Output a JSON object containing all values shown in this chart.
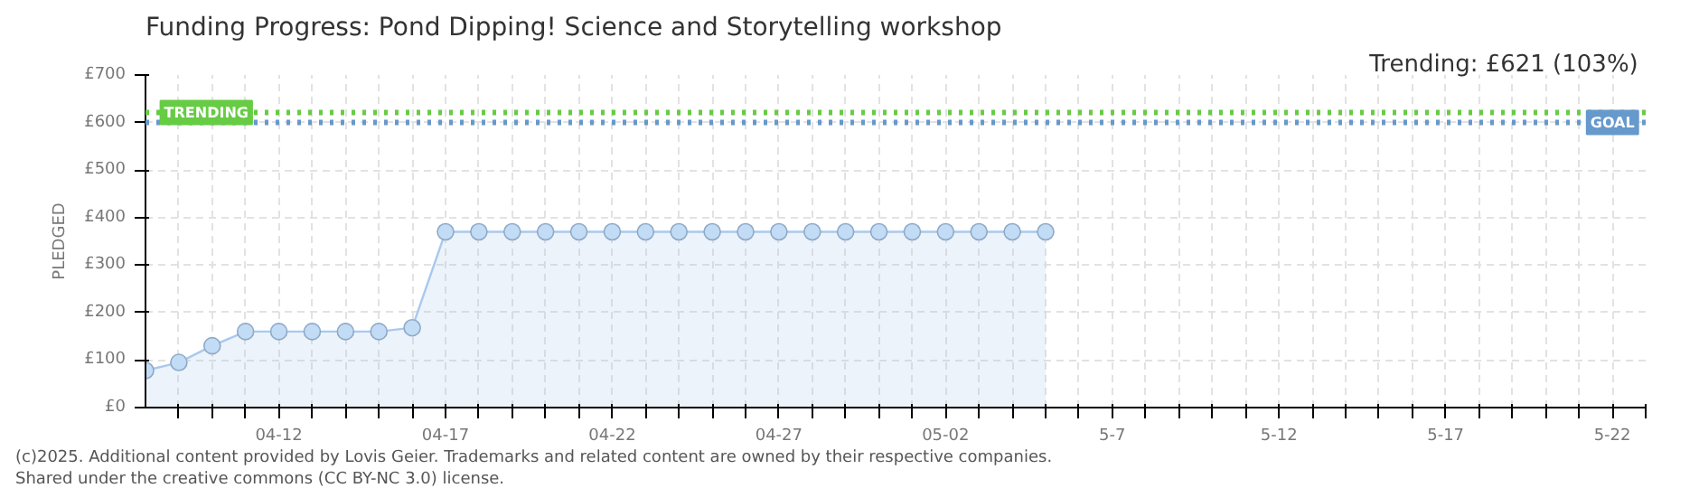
{
  "chart_data": {
    "type": "area",
    "title": "Funding Progress: Pond Dipping! Science and Storytelling workshop",
    "subtitle": "Trending:  £621 (103%)",
    "ylabel": "PLEDGED",
    "x": [
      "2025-04-08",
      "2025-04-09",
      "2025-04-10",
      "2025-04-11",
      "2025-04-12",
      "2025-04-13",
      "2025-04-14",
      "2025-04-15",
      "2025-04-16",
      "2025-04-17",
      "2025-04-18",
      "2025-04-19",
      "2025-04-20",
      "2025-04-21",
      "2025-04-22",
      "2025-04-23",
      "2025-04-24",
      "2025-04-25",
      "2025-04-26",
      "2025-04-27",
      "2025-04-28",
      "2025-04-29",
      "2025-04-30",
      "2025-05-01",
      "2025-05-02",
      "2025-05-03",
      "2025-05-04",
      "2025-05-05"
    ],
    "series": [
      {
        "color": "#a9c9ee",
        "values": [
          78,
          95,
          130,
          160,
          160,
          160,
          160,
          160,
          168,
          370,
          370,
          370,
          370,
          370,
          370,
          370,
          370,
          370,
          370,
          370,
          370,
          370,
          370,
          370,
          370,
          370,
          370,
          370
        ]
      }
    ],
    "marker": "circle",
    "xlim": [
      "2025-04-08",
      "2025-05-23"
    ],
    "xticks": [
      {
        "value": "2025-04-09",
        "label": null
      },
      {
        "value": "2025-04-10",
        "label": null
      },
      {
        "value": "2025-04-11",
        "label": null
      },
      {
        "value": "2025-04-12",
        "label": "04-12"
      },
      {
        "value": "2025-04-13",
        "label": null
      },
      {
        "value": "2025-04-14",
        "label": null
      },
      {
        "value": "2025-04-15",
        "label": null
      },
      {
        "value": "2025-04-16",
        "label": null
      },
      {
        "value": "2025-04-17",
        "label": "04-17"
      },
      {
        "value": "2025-04-18",
        "label": null
      },
      {
        "value": "2025-04-19",
        "label": null
      },
      {
        "value": "2025-04-20",
        "label": null
      },
      {
        "value": "2025-04-21",
        "label": null
      },
      {
        "value": "2025-04-22",
        "label": "04-22"
      },
      {
        "value": "2025-04-23",
        "label": null
      },
      {
        "value": "2025-04-24",
        "label": null
      },
      {
        "value": "2025-04-25",
        "label": null
      },
      {
        "value": "2025-04-26",
        "label": null
      },
      {
        "value": "2025-04-27",
        "label": "04-27"
      },
      {
        "value": "2025-04-28",
        "label": null
      },
      {
        "value": "2025-04-29",
        "label": null
      },
      {
        "value": "2025-04-30",
        "label": null
      },
      {
        "value": "2025-05-01",
        "label": null
      },
      {
        "value": "2025-05-02",
        "label": "05-02"
      },
      {
        "value": "2025-05-03",
        "label": null
      },
      {
        "value": "2025-05-04",
        "label": null
      },
      {
        "value": "2025-05-05",
        "label": null
      },
      {
        "value": "2025-05-06",
        "label": null
      },
      {
        "value": "2025-05-07",
        "label": "5-7"
      },
      {
        "value": "2025-05-08",
        "label": null
      },
      {
        "value": "2025-05-09",
        "label": null
      },
      {
        "value": "2025-05-10",
        "label": null
      },
      {
        "value": "2025-05-11",
        "label": null
      },
      {
        "value": "2025-05-12",
        "label": "5-12"
      },
      {
        "value": "2025-05-13",
        "label": null
      },
      {
        "value": "2025-05-14",
        "label": null
      },
      {
        "value": "2025-05-15",
        "label": null
      },
      {
        "value": "2025-05-16",
        "label": null
      },
      {
        "value": "2025-05-17",
        "label": "5-17"
      },
      {
        "value": "2025-05-18",
        "label": null
      },
      {
        "value": "2025-05-19",
        "label": null
      },
      {
        "value": "2025-05-20",
        "label": null
      },
      {
        "value": "2025-05-21",
        "label": null
      },
      {
        "value": "2025-05-22",
        "label": "5-22"
      },
      {
        "value": "2025-05-23",
        "label": null
      }
    ],
    "ylim": [
      0,
      700
    ],
    "yticks": [
      {
        "value": 0,
        "label": "£0"
      },
      {
        "value": 100,
        "label": "£100"
      },
      {
        "value": 200,
        "label": "£200"
      },
      {
        "value": 300,
        "label": "£300"
      },
      {
        "value": 400,
        "label": "£400"
      },
      {
        "value": 500,
        "label": "£500"
      },
      {
        "value": 600,
        "label": "£600"
      },
      {
        "value": 700,
        "label": "£700"
      }
    ],
    "grid": true,
    "ref_lines": [
      {
        "axis": "y",
        "value": 621,
        "label": "TRENDING",
        "color": "#66cc44",
        "line_style": "dotted"
      },
      {
        "axis": "y",
        "value": 600,
        "label": "GOAL",
        "color": "#6699cc",
        "line_style": "dotted"
      }
    ],
    "annotations": [
      "(c)2025. Additional content provided by Lovis Geier. Trademarks and related content are owned by their respective companies.",
      "Shared under the creative commons (CC BY-NC 3.0) license."
    ]
  }
}
